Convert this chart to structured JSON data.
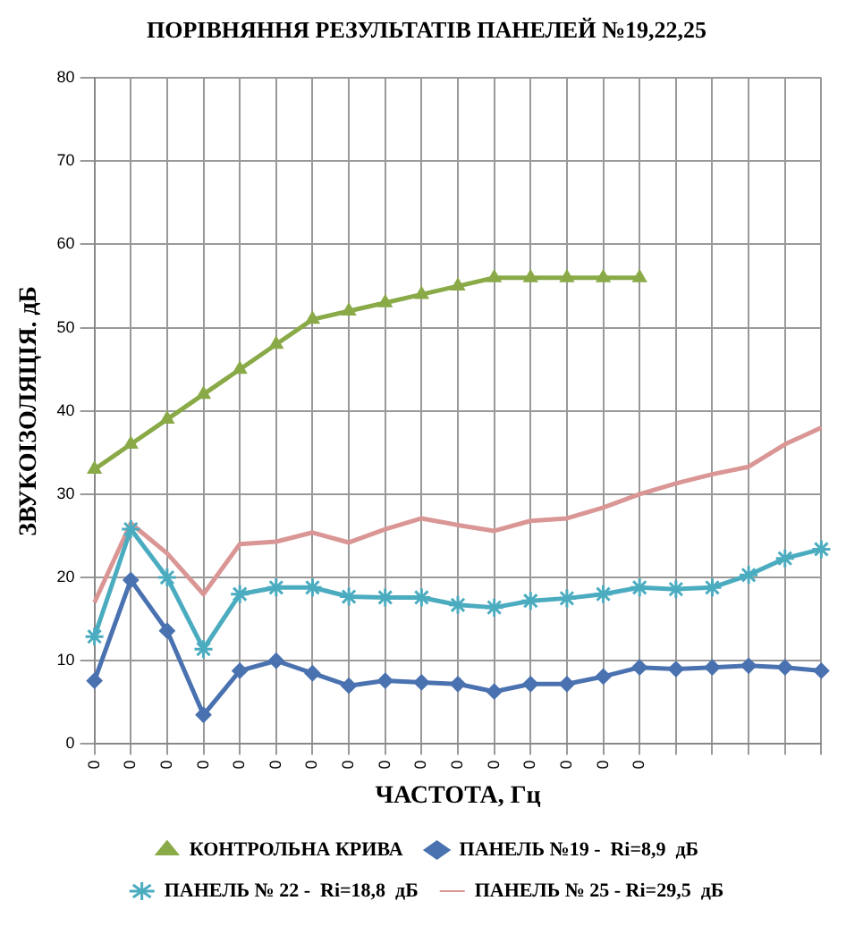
{
  "chart_data": {
    "type": "line",
    "title": "ПОРІВНЯННЯ РЕЗУЛЬТАТІВ ПАНЕЛЕЙ №19,22,25",
    "xlabel": "ЧАСТОТА, Гц",
    "ylabel": "ЗВУКОІЗОЛЯЦІЯ. дБ",
    "categories": [
      "0",
      "0",
      "0",
      "0",
      "0",
      "0",
      "0",
      "0",
      "0",
      "0",
      "0",
      "0",
      "0",
      "0",
      "0",
      "0",
      null,
      null,
      null,
      null,
      null
    ],
    "ylim": [
      0,
      80
    ],
    "yticks": [
      0,
      10,
      20,
      30,
      40,
      50,
      60,
      70,
      80
    ],
    "grid": true,
    "legend": "bottom",
    "series": [
      {
        "name": "КОНТРОЛЬНА КРИВА",
        "color": "#8aaa48",
        "marker": "triangle",
        "values": [
          33,
          36,
          39,
          42,
          45,
          48,
          51,
          52,
          53,
          54,
          55,
          56,
          56,
          56,
          56,
          56,
          null,
          null,
          null,
          null,
          null
        ]
      },
      {
        "name": "ПАНЕЛЬ №19 -  Ri=8,9  дБ",
        "color": "#4a72b0",
        "marker": "diamond",
        "values": [
          7.6,
          19.7,
          13.6,
          3.5,
          8.8,
          10,
          8.5,
          7,
          7.6,
          7.4,
          7.2,
          6.3,
          7.2,
          7.2,
          8.1,
          9.2,
          9,
          9.2,
          9.4,
          9.2,
          8.8
        ]
      },
      {
        "name": "ПАНЕЛЬ № 22 -  Ri=18,8  дБ",
        "color": "#4bacc0",
        "marker": "cross",
        "values": [
          12.9,
          25.8,
          20,
          11.4,
          18,
          18.8,
          18.8,
          17.7,
          17.6,
          17.6,
          16.7,
          16.4,
          17.2,
          17.5,
          18,
          18.8,
          18.6,
          18.8,
          20.3,
          22.3,
          23.4
        ]
      },
      {
        "name": "ПАНЕЛЬ № 25 - Ri=29,5  дБ",
        "color": "#d99694",
        "marker": "none",
        "values": [
          17,
          26.5,
          22.9,
          18,
          24,
          24.3,
          25.4,
          24.2,
          25.8,
          27.1,
          26.3,
          25.6,
          26.8,
          27.1,
          28.4,
          30,
          31.3,
          32.4,
          33.3,
          36,
          38
        ]
      }
    ]
  }
}
